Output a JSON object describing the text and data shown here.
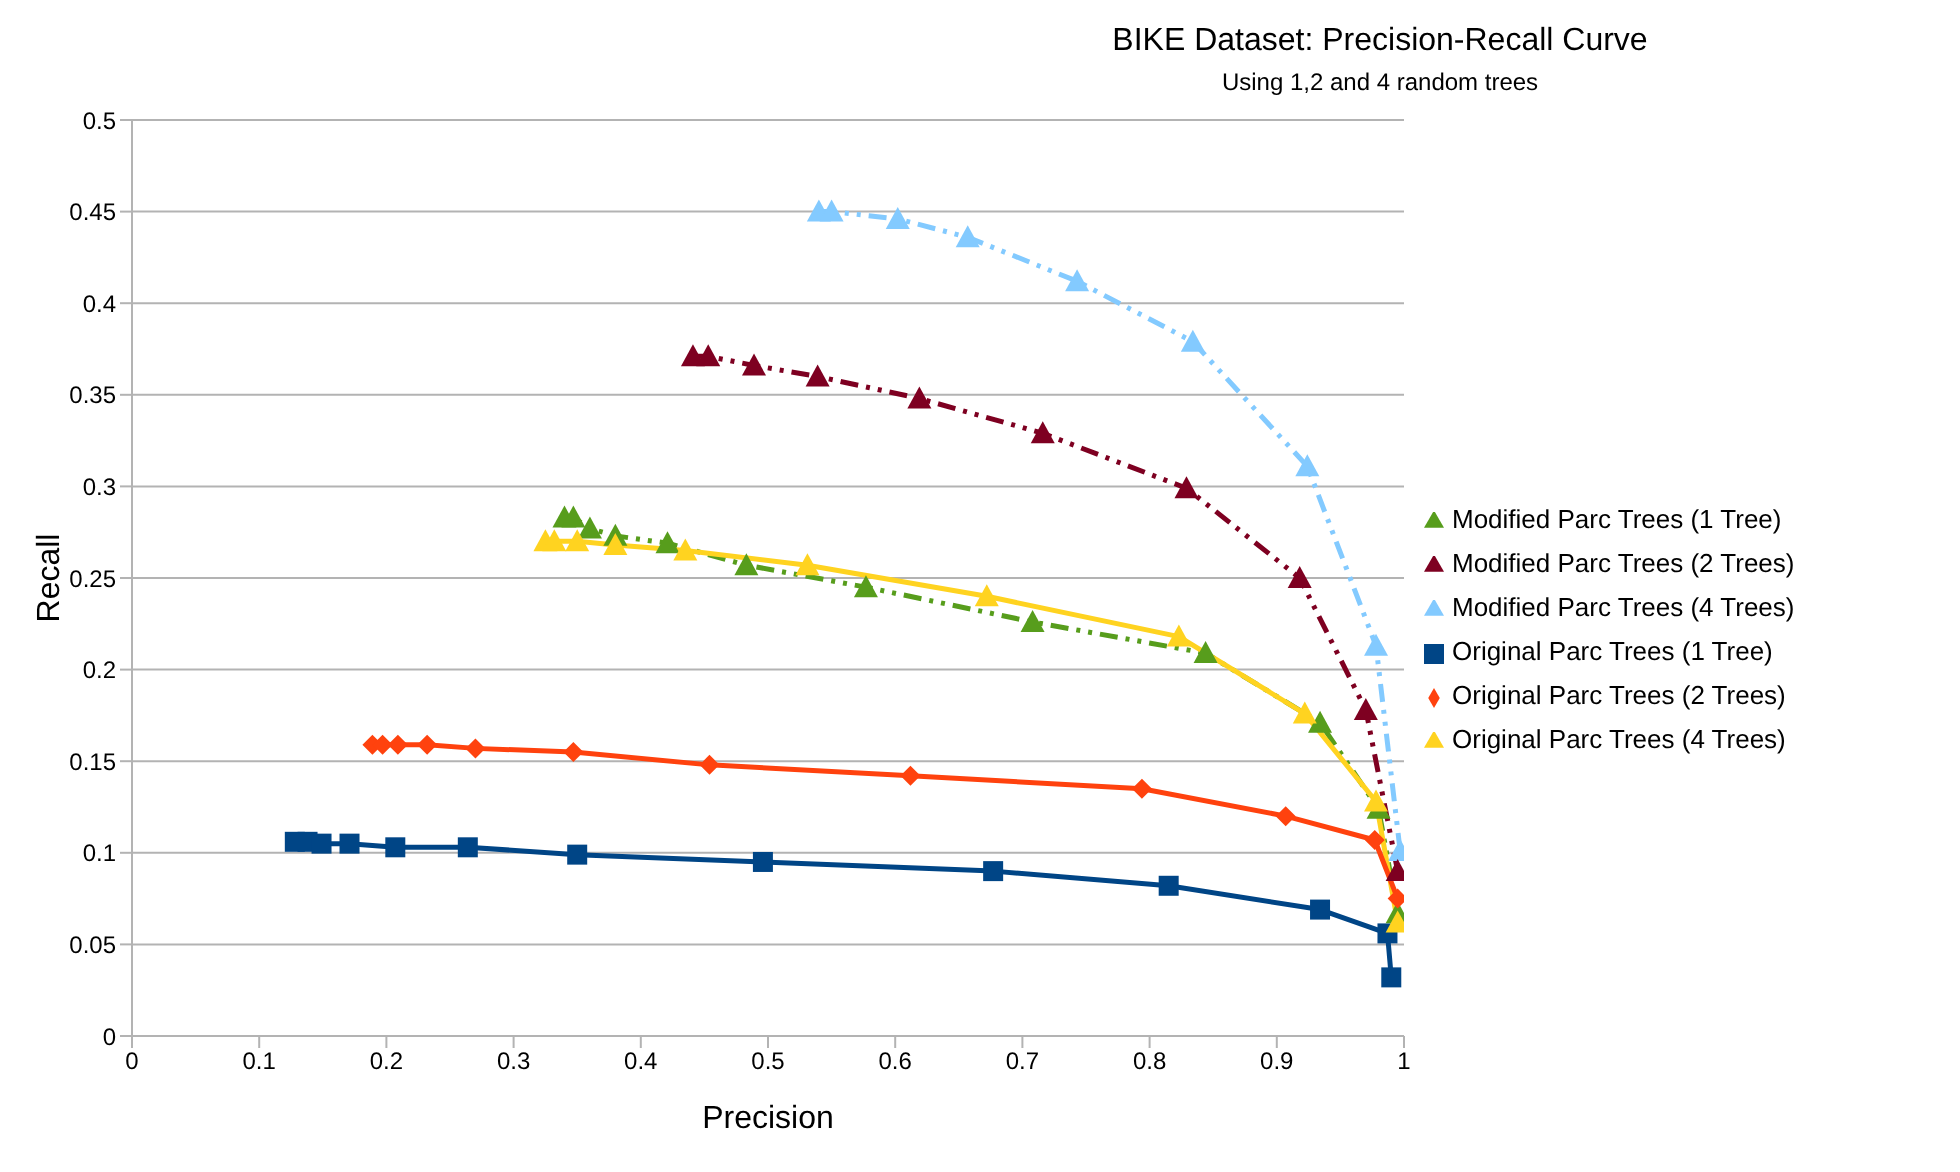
{
  "chart_data": {
    "type": "line",
    "title": "BIKE Dataset: Precision-Recall Curve",
    "subtitle": "Using 1,2 and 4 random trees",
    "xlabel": "Precision",
    "ylabel": "Recall",
    "xlim": [
      0,
      1
    ],
    "xticks": [
      0,
      0.1,
      0.2,
      0.3,
      0.4,
      0.5,
      0.6,
      0.7,
      0.8,
      0.9,
      1
    ],
    "ylim": [
      0,
      0.5
    ],
    "yticks": [
      0,
      0.05,
      0.1,
      0.15,
      0.2,
      0.25,
      0.3,
      0.35,
      0.4,
      0.45,
      0.5
    ],
    "grid": "y",
    "legend": "right",
    "series": [
      {
        "name": "Original  Parc Trees (1 Tree)",
        "color": "#004586",
        "marker": "square",
        "line_style": "solid",
        "x": [
          0.128,
          0.138,
          0.149,
          0.171,
          0.207,
          0.264,
          0.35,
          0.496,
          0.677,
          0.815,
          0.934,
          0.987,
          0.99
        ],
        "values": [
          0.106,
          0.106,
          0.105,
          0.105,
          0.103,
          0.103,
          0.099,
          0.095,
          0.09,
          0.082,
          0.069,
          0.056,
          0.032
        ]
      },
      {
        "name": "Modified Parc Trees (4 Trees)",
        "color": "#83caff",
        "marker": "triangle",
        "line_style": "dashed",
        "x": [
          0.54,
          0.55,
          0.602,
          0.657,
          0.743,
          0.834,
          0.924,
          0.978,
          0.997
        ],
        "values": [
          0.45,
          0.45,
          0.446,
          0.436,
          0.412,
          0.379,
          0.311,
          0.213,
          0.101
        ]
      },
      {
        "name": "Modified Parc Trees (2 Trees)",
        "color": "#7e0021",
        "marker": "triangle",
        "line_style": "dashed",
        "x": [
          0.441,
          0.453,
          0.489,
          0.539,
          0.619,
          0.716,
          0.829,
          0.918,
          0.97,
          0.995
        ],
        "values": [
          0.371,
          0.371,
          0.366,
          0.36,
          0.348,
          0.329,
          0.299,
          0.25,
          0.178,
          0.09
        ]
      },
      {
        "name": "Modified Parc Trees (1 Tree)",
        "color": "#579d1c",
        "marker": "triangle",
        "line_style": "dashed",
        "x": [
          0.34,
          0.347,
          0.36,
          0.38,
          0.421,
          0.483,
          0.577,
          0.708,
          0.844,
          0.934,
          0.98,
          0.995
        ],
        "values": [
          0.283,
          0.283,
          0.277,
          0.273,
          0.269,
          0.257,
          0.245,
          0.226,
          0.209,
          0.171,
          0.124,
          0.067
        ]
      },
      {
        "name": "Original Parc Trees (4 Trees)",
        "color": "#ffd320",
        "marker": "triangle",
        "line_style": "solid",
        "x": [
          0.325,
          0.332,
          0.35,
          0.38,
          0.435,
          0.531,
          0.672,
          0.823,
          0.922,
          0.978,
          0.995
        ],
        "values": [
          0.27,
          0.27,
          0.27,
          0.268,
          0.265,
          0.257,
          0.24,
          0.218,
          0.176,
          0.128,
          0.062
        ]
      },
      {
        "name": "Original Parc Trees (2 Trees)",
        "color": "#ff420e",
        "marker": "diamond",
        "line_style": "solid",
        "x": [
          0.189,
          0.197,
          0.209,
          0.232,
          0.27,
          0.347,
          0.454,
          0.612,
          0.794,
          0.907,
          0.977,
          0.995
        ],
        "values": [
          0.159,
          0.159,
          0.159,
          0.159,
          0.157,
          0.155,
          0.148,
          0.142,
          0.135,
          0.12,
          0.107,
          0.075
        ]
      }
    ]
  }
}
